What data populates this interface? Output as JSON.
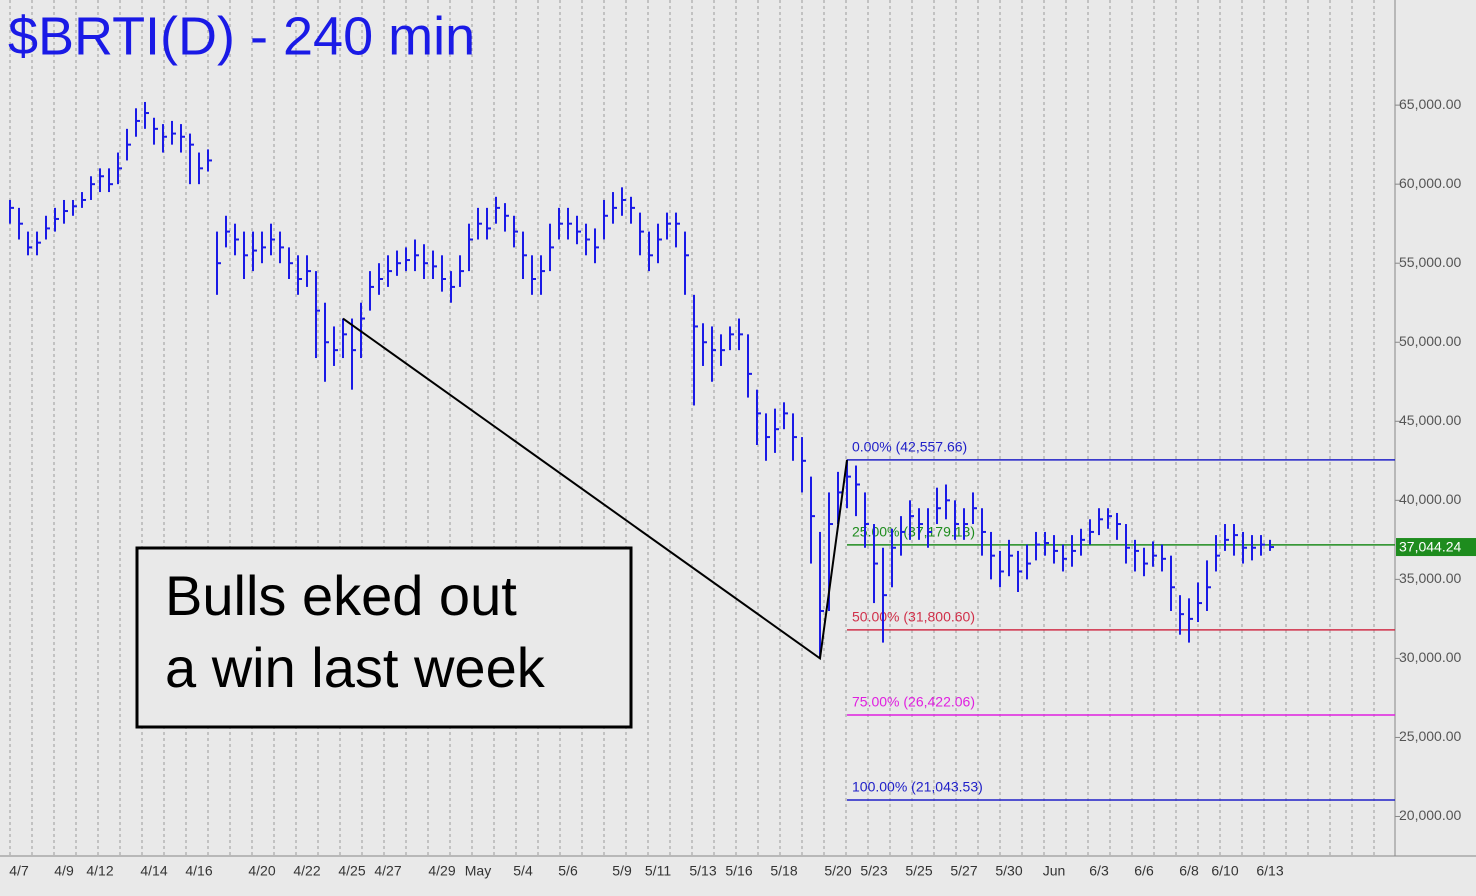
{
  "chart_data": {
    "type": "ohlc",
    "title": "$BRTI(D) - 240 min",
    "categories": [
      null,
      "4/7",
      null,
      null,
      null,
      null,
      "4/9",
      null,
      null,
      null,
      "4/12",
      null,
      null,
      null,
      null,
      null,
      "4/14",
      null,
      null,
      null,
      null,
      "4/16",
      null,
      null,
      null,
      null,
      null,
      null,
      "4/20",
      null,
      null,
      null,
      null,
      "4/22",
      null,
      null,
      null,
      null,
      "4/25",
      null,
      null,
      null,
      "4/27",
      null,
      null,
      null,
      null,
      null,
      "4/29",
      null,
      null,
      null,
      "May",
      null,
      null,
      null,
      null,
      "5/4",
      null,
      null,
      null,
      null,
      "5/6",
      null,
      null,
      null,
      null,
      null,
      "5/9",
      null,
      null,
      null,
      "5/11",
      null,
      null,
      null,
      null,
      "5/13",
      null,
      null,
      null,
      "5/16",
      null,
      null,
      null,
      null,
      "5/18",
      null,
      null,
      null,
      null,
      null,
      "5/20",
      null,
      null,
      null,
      "5/23",
      null,
      null,
      null,
      null,
      "5/25",
      null,
      null,
      null,
      null,
      "5/27",
      null,
      null,
      null,
      null,
      "5/30",
      null,
      null,
      null,
      null,
      "Jun",
      null,
      null,
      null,
      null,
      "6/3",
      null,
      null,
      null,
      null,
      "6/6",
      null,
      null,
      null,
      null,
      "6/8",
      null,
      null,
      null,
      "6/10",
      null,
      null,
      null,
      null,
      "6/13"
    ],
    "high": [
      59000,
      58500,
      57000,
      57000,
      58000,
      58500,
      59000,
      59000,
      59500,
      60500,
      61000,
      61000,
      62000,
      63500,
      64800,
      65200,
      64200,
      63800,
      64000,
      63800,
      63200,
      62000,
      62200,
      57000,
      58000,
      57500,
      57000,
      57000,
      57000,
      57500,
      57000,
      56000,
      55500,
      55500,
      54500,
      52500,
      51000,
      51500,
      51500,
      52500,
      54500,
      55000,
      55500,
      55800,
      56000,
      56500,
      56200,
      55800,
      55500,
      54500,
      55500,
      57500,
      58500,
      58500,
      59200,
      58800,
      58000,
      57000,
      55500,
      55500,
      57500,
      58500,
      58500,
      58000,
      57500,
      57200,
      59000,
      59500,
      59800,
      59200,
      58200,
      57000,
      57500,
      58200,
      58200,
      57000,
      53000,
      51200,
      51000,
      50500,
      51000,
      51500,
      50500,
      47000,
      45500,
      45800,
      46200,
      45500,
      44000,
      41500,
      38000,
      40500,
      41800,
      42557.66,
      42200,
      40500,
      38500,
      37000,
      38200,
      39000,
      40000,
      39500,
      39500,
      40800,
      41000,
      40000,
      39500,
      40500,
      39500,
      38000,
      36800,
      37500,
      36800,
      37200,
      38000,
      38000,
      37800,
      37200,
      37800,
      38200,
      38800,
      39500,
      39500,
      39200,
      38500,
      37500,
      37000,
      37400,
      37200,
      36500,
      34000,
      33800,
      34800,
      36200,
      37800,
      38500,
      38500,
      38000,
      37800,
      37800,
      37500
    ],
    "low": [
      57500,
      56500,
      55500,
      55500,
      56500,
      57000,
      57500,
      58000,
      58500,
      59000,
      59500,
      59500,
      60000,
      61500,
      63000,
      63500,
      62500,
      62000,
      62500,
      62000,
      60000,
      60000,
      60800,
      53000,
      56000,
      55500,
      54000,
      54500,
      55000,
      55500,
      55000,
      54000,
      53000,
      53500,
      49000,
      47500,
      48500,
      49000,
      47000,
      49000,
      52000,
      53000,
      53500,
      54200,
      54500,
      54500,
      54000,
      54000,
      53200,
      52500,
      53500,
      54500,
      56500,
      56500,
      57500,
      57000,
      56000,
      54000,
      53000,
      53000,
      54500,
      56500,
      56500,
      56200,
      55500,
      55000,
      56500,
      57500,
      58000,
      57500,
      55500,
      54500,
      55000,
      56500,
      56000,
      53000,
      46000,
      48500,
      47500,
      48500,
      49500,
      49500,
      46500,
      43500,
      42500,
      43000,
      44500,
      42500,
      40500,
      36000,
      30000,
      33000,
      38500,
      39500,
      39000,
      37000,
      33500,
      31000,
      34500,
      36500,
      37500,
      37500,
      37000,
      38500,
      38800,
      37500,
      37500,
      38500,
      36500,
      35000,
      34500,
      35200,
      34200,
      35000,
      36200,
      36500,
      36000,
      35500,
      35800,
      36500,
      37200,
      37800,
      38200,
      37500,
      36000,
      35500,
      35200,
      35800,
      35500,
      33000,
      31500,
      31000,
      32300,
      33000,
      35500,
      36800,
      36500,
      36000,
      36200,
      36500,
      36800
    ],
    "close": [
      58500,
      57500,
      56000,
      56300,
      57200,
      57800,
      58300,
      58600,
      59000,
      60000,
      60500,
      60000,
      61000,
      62500,
      64000,
      64500,
      63500,
      63000,
      63200,
      63000,
      62500,
      61000,
      61500,
      55000,
      57000,
      56500,
      55500,
      55800,
      56000,
      56500,
      56000,
      55000,
      54000,
      54500,
      52000,
      50000,
      49500,
      50500,
      49500,
      51500,
      53500,
      54000,
      54500,
      55000,
      55200,
      55500,
      55000,
      54800,
      54000,
      53500,
      54500,
      56500,
      57500,
      57200,
      58500,
      58000,
      57000,
      55500,
      54000,
      54500,
      56000,
      57500,
      57500,
      57000,
      56500,
      56000,
      58000,
      58500,
      59000,
      58500,
      57000,
      55500,
      56500,
      57500,
      57500,
      55500,
      51000,
      50000,
      49500,
      49500,
      50500,
      50500,
      48000,
      45500,
      44000,
      44500,
      45500,
      44000,
      42500,
      39000,
      33000,
      38500,
      40500,
      41500,
      41000,
      38500,
      36000,
      34000,
      37000,
      38000,
      39000,
      38500,
      38000,
      39500,
      40000,
      38500,
      38500,
      39500,
      38000,
      36500,
      35500,
      36500,
      35500,
      36000,
      37200,
      37300,
      36800,
      36300,
      36800,
      37500,
      38000,
      38800,
      39000,
      38500,
      37000,
      36800,
      36000,
      36500,
      36300,
      34500,
      32800,
      32500,
      33500,
      34500,
      36500,
      37500,
      37800,
      37000,
      37000,
      37200,
      37044.24
    ],
    "last_label": "37,044.24",
    "last_label_color": "#1e8c1e",
    "color": "#1a1ae6",
    "ylim": [
      17500,
      71650
    ],
    "yticks": [
      {
        "value": 20000,
        "label": "20,000.00"
      },
      {
        "value": 25000,
        "label": "25,000.00"
      },
      {
        "value": 30000,
        "label": "30,000.00"
      },
      {
        "value": 35000,
        "label": "35,000.00"
      },
      {
        "value": 40000,
        "label": "40,000.00"
      },
      {
        "value": 45000,
        "label": "45,000.00"
      },
      {
        "value": 50000,
        "label": "50,000.00"
      },
      {
        "value": 55000,
        "label": "55,000.00"
      },
      {
        "value": 60000,
        "label": "60,000.00"
      },
      {
        "value": 65000,
        "label": "65,000.00"
      }
    ],
    "levels": [
      {
        "value": 42557.66,
        "label": "0.00% (42,557.66)",
        "color": "#2020c8"
      },
      {
        "value": 37179.13,
        "label": "25.00% (37,179.13)",
        "color": "#1e8c1e"
      },
      {
        "value": 31800.6,
        "label": "50.00% (31,800.60)",
        "color": "#d0304a"
      },
      {
        "value": 26422.06,
        "label": "75.00% (26,422.06)",
        "color": "#e020e0"
      },
      {
        "value": 21043.53,
        "label": "100.00% (21,043.53)",
        "color": "#2020c8"
      }
    ],
    "trendline": [
      51500,
      30000,
      42557.66
    ],
    "annotation": [
      "Bulls eked out",
      "a win last week"
    ]
  }
}
